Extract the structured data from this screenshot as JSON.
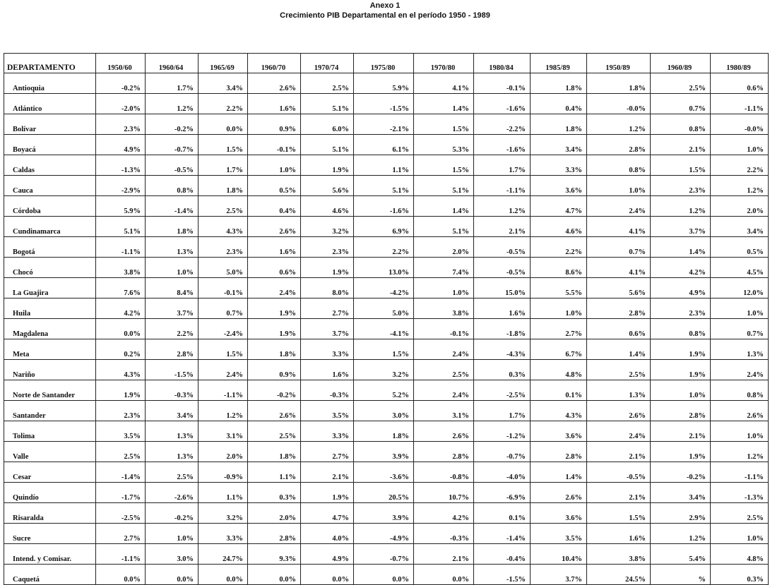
{
  "header": {
    "title": "Anexo 1",
    "subtitle": "Crecimiento PIB Departamental en el período 1950 - 1989"
  },
  "table": {
    "columns": [
      "DEPARTAMENTO",
      "1950/60",
      "1960/64",
      "1965/69",
      "1960/70",
      "1970/74",
      "1975/80",
      "1970/80",
      "1980/84",
      "1985/89",
      "1950/89",
      "1960/89",
      "1980/89"
    ],
    "rows": [
      [
        "Antioquia",
        "-0.2%",
        "1.7%",
        "3.4%",
        "2.6%",
        "2.5%",
        "5.9%",
        "4.1%",
        "-0.1%",
        "1.8%",
        "1.8%",
        "2.5%",
        "0.6%"
      ],
      [
        "Atlántico",
        "-2.0%",
        "1.2%",
        "2.2%",
        "1.6%",
        "5.1%",
        "-1.5%",
        "1.4%",
        "-1.6%",
        "0.4%",
        "-0.0%",
        "0.7%",
        "-1.1%"
      ],
      [
        "Bolívar",
        "2.3%",
        "-0.2%",
        "0.0%",
        "0.9%",
        "6.0%",
        "-2.1%",
        "1.5%",
        "-2.2%",
        "1.8%",
        "1.2%",
        "0.8%",
        "-0.0%"
      ],
      [
        "Boyacá",
        "4.9%",
        "-0.7%",
        "1.5%",
        "-0.1%",
        "5.1%",
        "6.1%",
        "5.3%",
        "-1.6%",
        "3.4%",
        "2.8%",
        "2.1%",
        "1.0%"
      ],
      [
        "Caldas",
        "-1.3%",
        "-0.5%",
        "1.7%",
        "1.0%",
        "1.9%",
        "1.1%",
        "1.5%",
        "1.7%",
        "3.3%",
        "0.8%",
        "1.5%",
        "2.2%"
      ],
      [
        "Cauca",
        "-2.9%",
        "0.8%",
        "1.8%",
        "0.5%",
        "5.6%",
        "5.1%",
        "5.1%",
        "-1.1%",
        "3.6%",
        "1.0%",
        "2.3%",
        "1.2%"
      ],
      [
        "Córdoba",
        "5.9%",
        "-1.4%",
        "2.5%",
        "0.4%",
        "4.6%",
        "-1.6%",
        "1.4%",
        "1.2%",
        "4.7%",
        "2.4%",
        "1.2%",
        "2.0%"
      ],
      [
        "Cundinamarca",
        "5.1%",
        "1.8%",
        "4.3%",
        "2.6%",
        "3.2%",
        "6.9%",
        "5.1%",
        "2.1%",
        "4.6%",
        "4.1%",
        "3.7%",
        "3.4%"
      ],
      [
        "Bogotá",
        "-1.1%",
        "1.3%",
        "2.3%",
        "1.6%",
        "2.3%",
        "2.2%",
        "2.0%",
        "-0.5%",
        "2.2%",
        "0.7%",
        "1.4%",
        "0.5%"
      ],
      [
        "Chocó",
        "3.8%",
        "1.0%",
        "5.0%",
        "0.6%",
        "1.9%",
        "13.0%",
        "7.4%",
        "-0.5%",
        "8.6%",
        "4.1%",
        "4.2%",
        "4.5%"
      ],
      [
        "La Guajira",
        "7.6%",
        "8.4%",
        "-0.1%",
        "2.4%",
        "8.0%",
        "-4.2%",
        "1.0%",
        "15.0%",
        "5.5%",
        "5.6%",
        "4.9%",
        "12.0%"
      ],
      [
        "Huila",
        "4.2%",
        "3.7%",
        "0.7%",
        "1.9%",
        "2.7%",
        "5.0%",
        "3.8%",
        "1.6%",
        "1.0%",
        "2.8%",
        "2.3%",
        "1.0%"
      ],
      [
        "Magdalena",
        "0.0%",
        "2.2%",
        "-2.4%",
        "1.9%",
        "3.7%",
        "-4.1%",
        "-0.1%",
        "-1.8%",
        "2.7%",
        "0.6%",
        "0.8%",
        "0.7%"
      ],
      [
        "Meta",
        "0.2%",
        "2.8%",
        "1.5%",
        "1.8%",
        "3.3%",
        "1.5%",
        "2.4%",
        "-4.3%",
        "6.7%",
        "1.4%",
        "1.9%",
        "1.3%"
      ],
      [
        "Nariño",
        "4.3%",
        "-1.5%",
        "2.4%",
        "0.9%",
        "1.6%",
        "3.2%",
        "2.5%",
        "0.3%",
        "4.8%",
        "2.5%",
        "1.9%",
        "2.4%"
      ],
      [
        "Norte de Santander",
        "1.9%",
        "-0.3%",
        "-1.1%",
        "-0.2%",
        "-0.3%",
        "5.2%",
        "2.4%",
        "-2.5%",
        "0.1%",
        "1.3%",
        "1.0%",
        "0.8%"
      ],
      [
        "Santander",
        "2.3%",
        "3.4%",
        "1.2%",
        "2.6%",
        "3.5%",
        "3.0%",
        "3.1%",
        "1.7%",
        "4.3%",
        "2.6%",
        "2.8%",
        "2.6%"
      ],
      [
        "Tolima",
        "3.5%",
        "1.3%",
        "3.1%",
        "2.5%",
        "3.3%",
        "1.8%",
        "2.6%",
        "-1.2%",
        "3.6%",
        "2.4%",
        "2.1%",
        "1.0%"
      ],
      [
        "Valle",
        "2.5%",
        "1.3%",
        "2.0%",
        "1.8%",
        "2.7%",
        "3.9%",
        "2.8%",
        "-0.7%",
        "2.8%",
        "2.1%",
        "1.9%",
        "1.2%"
      ],
      [
        "Cesar",
        "-1.4%",
        "2.5%",
        "-0.9%",
        "1.1%",
        "2.1%",
        "-3.6%",
        "-0.8%",
        "-4.0%",
        "1.4%",
        "-0.5%",
        "-0.2%",
        "-1.1%"
      ],
      [
        "Quindío",
        "-1.7%",
        "-2.6%",
        "1.1%",
        "0.3%",
        "1.9%",
        "20.5%",
        "10.7%",
        "-6.9%",
        "2.6%",
        "2.1%",
        "3.4%",
        "-1.3%"
      ],
      [
        "Risaralda",
        "-2.5%",
        "-0.2%",
        "3.2%",
        "2.0%",
        "4.7%",
        "3.9%",
        "4.2%",
        "0.1%",
        "3.6%",
        "1.5%",
        "2.9%",
        "2.5%"
      ],
      [
        "Sucre",
        "2.7%",
        "1.0%",
        "3.3%",
        "2.8%",
        "4.0%",
        "-4.9%",
        "-0.3%",
        "-1.4%",
        "3.5%",
        "1.6%",
        "1.2%",
        "1.0%"
      ],
      [
        "Intend. y Comisar.",
        "-1.1%",
        "3.0%",
        "24.7%",
        "9.3%",
        "4.9%",
        "-0.7%",
        "2.1%",
        "-0.4%",
        "10.4%",
        "3.8%",
        "5.4%",
        "4.8%"
      ],
      [
        "Caquetá",
        "0.0%",
        "0.0%",
        "0.0%",
        "0.0%",
        "0.0%",
        "0.0%",
        "0.0%",
        "-1.5%",
        "3.7%",
        "24.5%",
        "%",
        "0.3%"
      ]
    ]
  }
}
